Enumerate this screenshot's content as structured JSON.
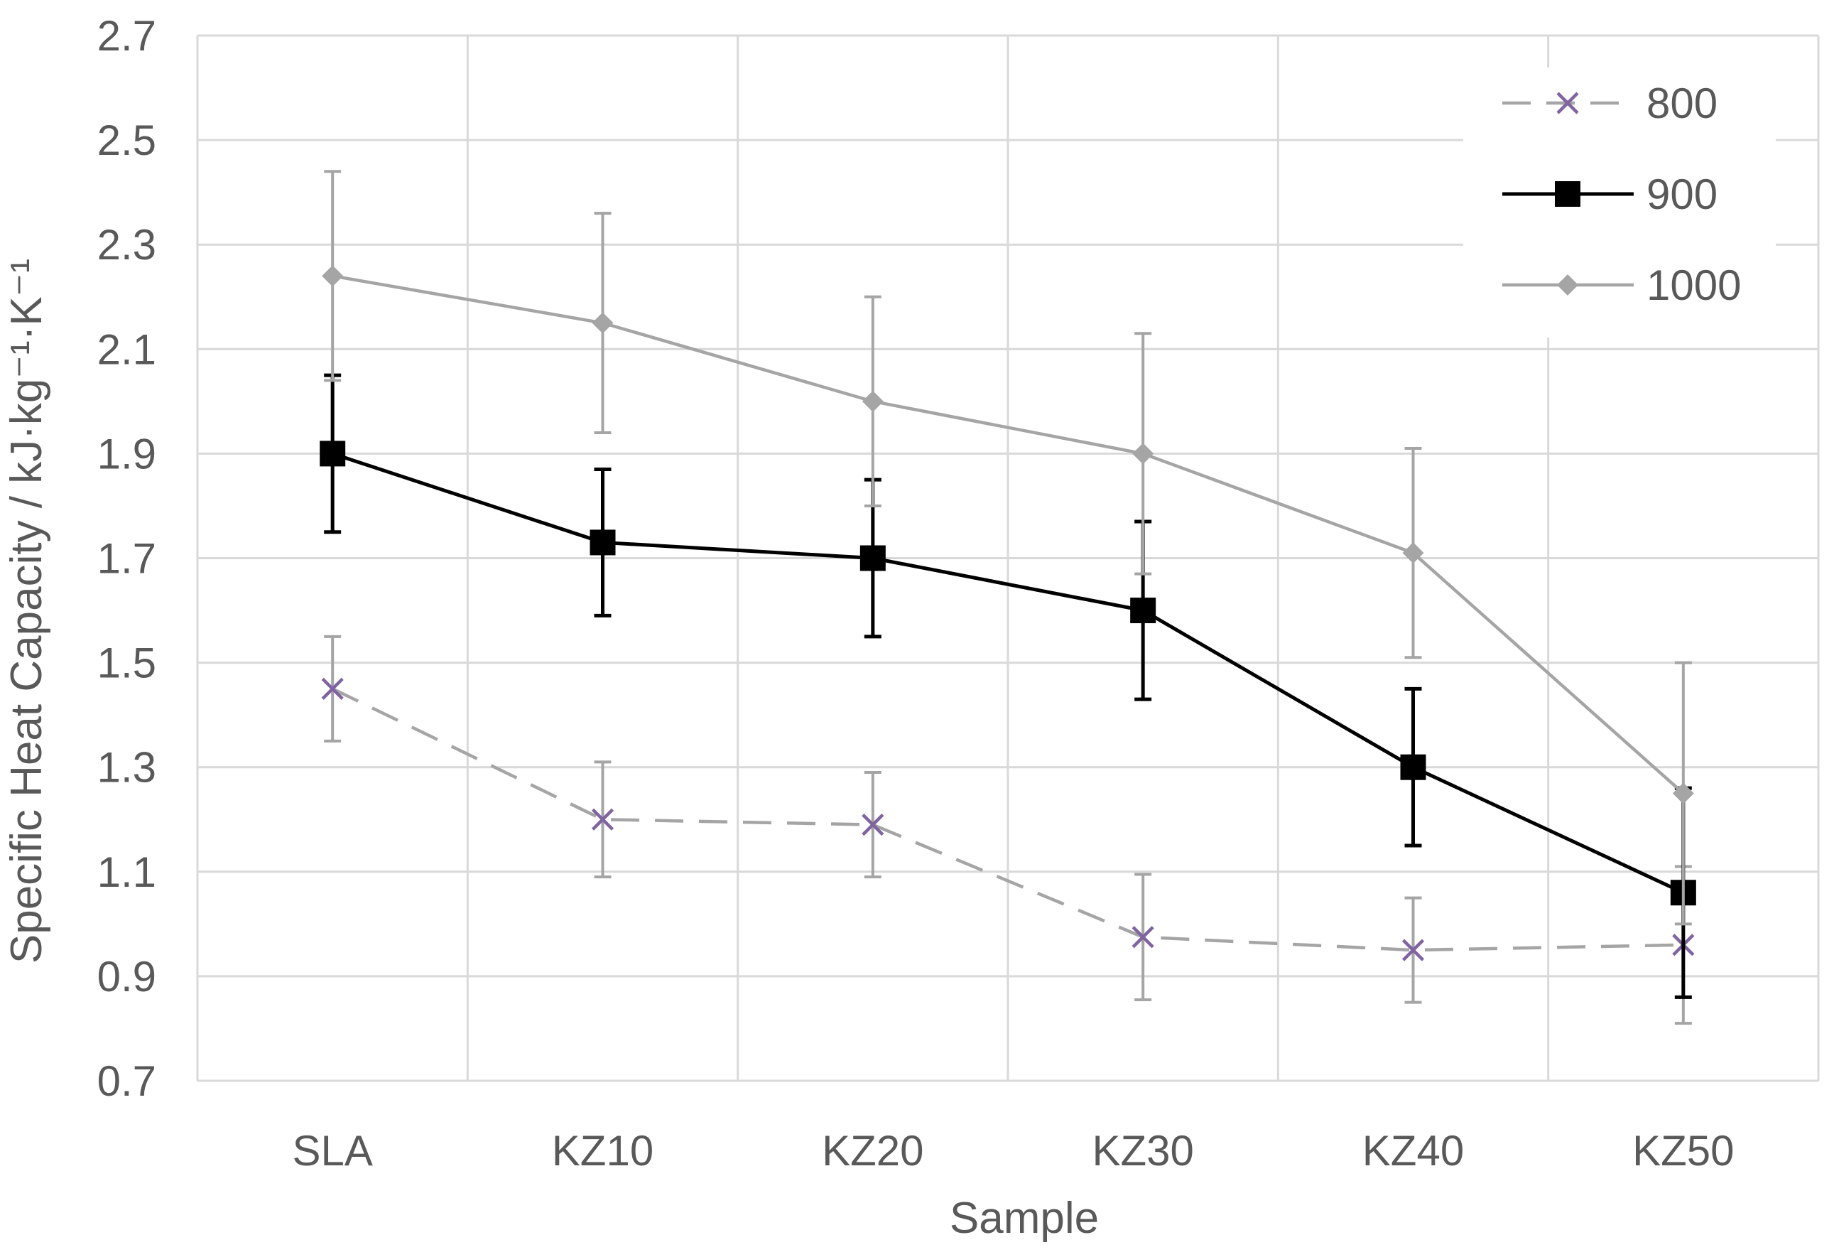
{
  "chart_data": {
    "type": "line",
    "title": "",
    "xlabel": "Sample",
    "ylabel": "Specific Heat Capacity / kJ·kg⁻¹·K⁻¹",
    "categories": [
      "SLA",
      "KZ10",
      "KZ20",
      "KZ30",
      "KZ40",
      "KZ50"
    ],
    "ylim": [
      0.7,
      2.7
    ],
    "yticks": [
      "0.7",
      "0.9",
      "1.1",
      "1.3",
      "1.5",
      "1.7",
      "1.9",
      "2.1",
      "2.3",
      "2.5",
      "2.7"
    ],
    "ytick_values": [
      0.7,
      0.9,
      1.1,
      1.3,
      1.5,
      1.7,
      1.9,
      2.1,
      2.3,
      2.5,
      2.7
    ],
    "grid": true,
    "legend_position": "top-right",
    "series": [
      {
        "name": "800",
        "color": "#a5a5a5",
        "marker_color": "#8064a2",
        "marker": "x",
        "line_style": "dashed",
        "values": [
          1.45,
          1.2,
          1.19,
          0.975,
          0.95,
          0.96
        ],
        "errors": [
          0.1,
          0.11,
          0.1,
          0.12,
          0.1,
          0.15
        ]
      },
      {
        "name": "900",
        "color": "#000000",
        "marker_color": "#000000",
        "marker": "square",
        "line_style": "solid",
        "values": [
          1.9,
          1.73,
          1.7,
          1.6,
          1.3,
          1.06
        ],
        "errors": [
          0.15,
          0.14,
          0.15,
          0.17,
          0.15,
          0.2
        ]
      },
      {
        "name": "1000",
        "color": "#a5a5a5",
        "marker_color": "#a5a5a5",
        "marker": "diamond",
        "line_style": "solid",
        "values": [
          2.24,
          2.15,
          2.0,
          1.9,
          1.71,
          1.25
        ],
        "errors": [
          0.2,
          0.21,
          0.2,
          0.23,
          0.2,
          0.25
        ]
      }
    ]
  }
}
